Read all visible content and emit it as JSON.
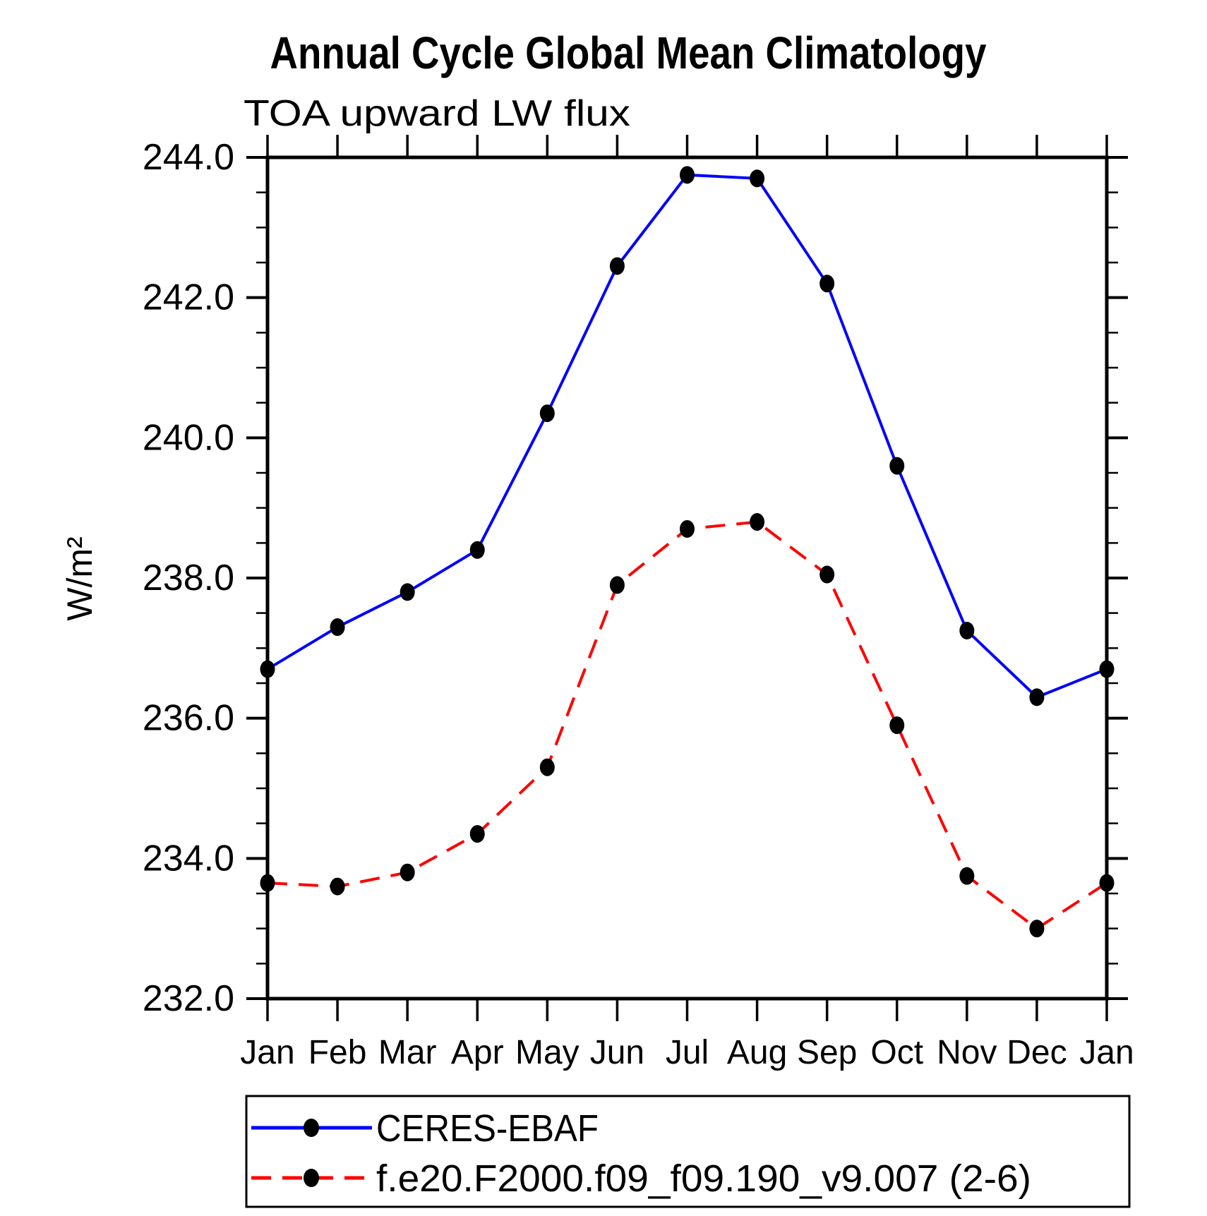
{
  "figure": {
    "title": "Annual Cycle Global Mean Climatology",
    "subtitle": "TOA upward LW flux",
    "ylabel": "W/m²"
  },
  "chart_data": {
    "type": "line",
    "title": "Annual Cycle Global Mean Climatology",
    "subtitle": "TOA upward LW flux",
    "xlabel": "",
    "ylabel": "W/m²",
    "x_categories": [
      "Jan",
      "Feb",
      "Mar",
      "Apr",
      "May",
      "Jun",
      "Jul",
      "Aug",
      "Sep",
      "Oct",
      "Nov",
      "Dec",
      "Jan"
    ],
    "ylim": [
      232.0,
      244.0
    ],
    "y_major_ticks": [
      232.0,
      234.0,
      236.0,
      238.0,
      240.0,
      242.0,
      244.0
    ],
    "y_minor_step": 0.5,
    "y_tick_decimals": 1,
    "grid": false,
    "legend_position": "bottom-box",
    "colors": {
      "axis": "#000000",
      "marker": "#000000",
      "series1": "#0000ff",
      "series2": "#ff0000",
      "background": "#ffffff"
    },
    "series": [
      {
        "name": "CERES-EBAF",
        "line_color": "#0000ff",
        "line_style": "solid",
        "marker": "filled-circle",
        "marker_color": "#000000",
        "values": [
          236.7,
          237.3,
          237.8,
          238.4,
          240.35,
          242.45,
          243.75,
          243.7,
          242.2,
          239.6,
          237.25,
          236.3,
          236.7
        ]
      },
      {
        "name": "f.e20.F2000.f09_f09.190_v9.007 (2-6)",
        "line_color": "#ff0000",
        "line_style": "dashed",
        "marker": "filled-circle",
        "marker_color": "#000000",
        "values": [
          233.65,
          233.6,
          233.8,
          234.35,
          235.3,
          237.9,
          238.7,
          238.8,
          238.05,
          235.9,
          233.75,
          233.0,
          233.65
        ]
      }
    ]
  }
}
